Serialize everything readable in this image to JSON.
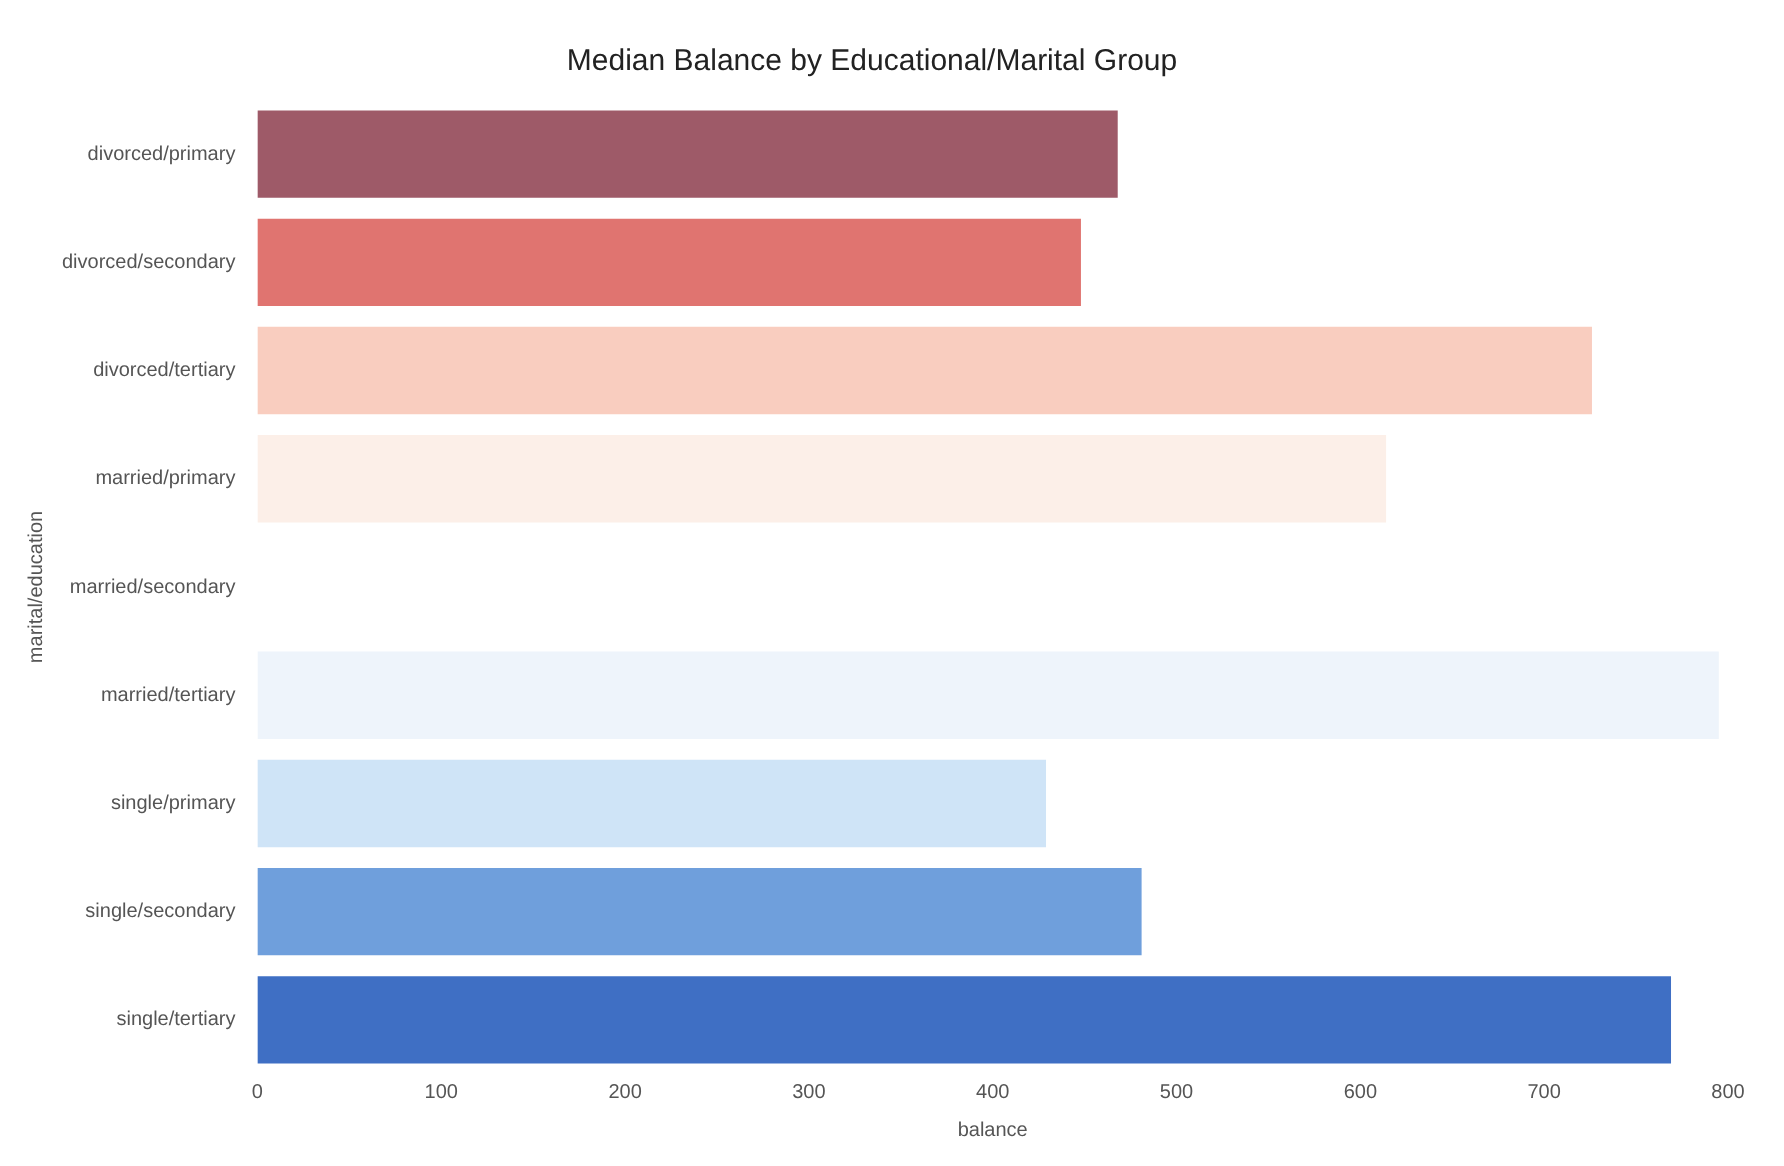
{
  "chart_data": {
    "type": "bar",
    "orientation": "horizontal",
    "title": "Median Balance by Educational/Marital Group",
    "xlabel": "balance",
    "ylabel": "marital/education",
    "categories": [
      "divorced/primary",
      "divorced/secondary",
      "divorced/tertiary",
      "married/primary",
      "married/secondary",
      "married/tertiary",
      "single/primary",
      "single/secondary",
      "single/tertiary"
    ],
    "values": [
      468,
      448,
      726,
      614,
      null,
      795,
      429,
      481,
      769
    ],
    "colors": [
      "#9e5a68",
      "#e07470",
      "#f9cdbf",
      "#fcefe8",
      "#f7f7f7",
      "#eef4fb",
      "#cfe4f7",
      "#6f9fdc",
      "#3f6fc4"
    ],
    "xlim": [
      0,
      800
    ],
    "xticks": [
      0,
      100,
      200,
      300,
      400,
      500,
      600,
      700,
      800
    ],
    "grid": false,
    "legend": false
  }
}
